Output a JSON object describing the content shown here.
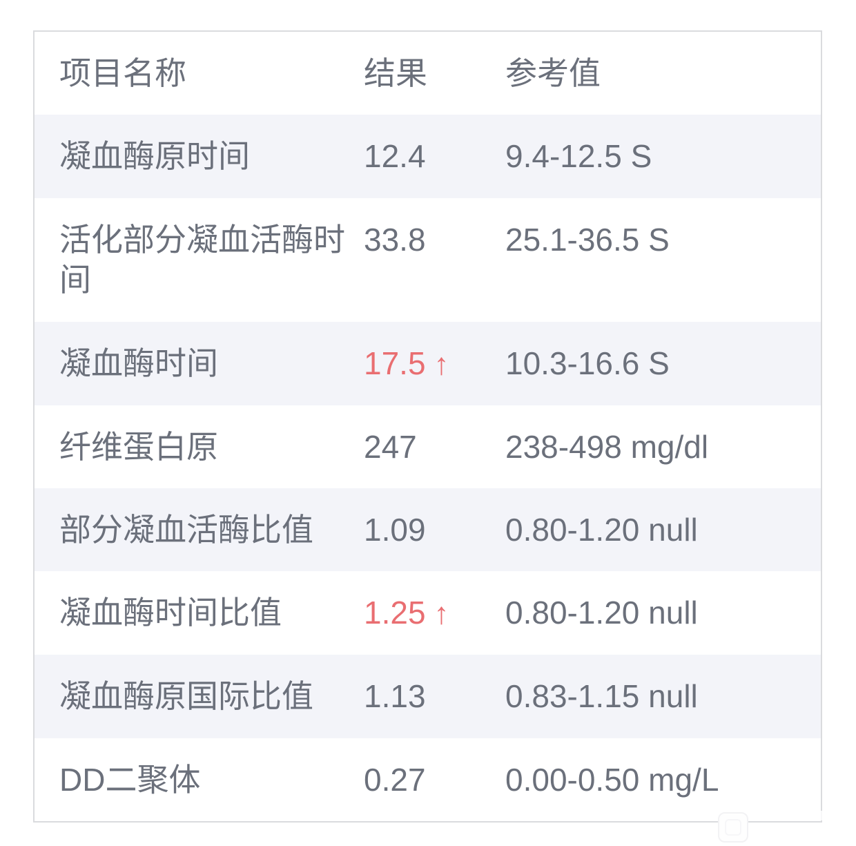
{
  "colors": {
    "text_gray": "#6b707b",
    "abnormal_red": "#e96e71",
    "row_alt_background": "#f3f4f9",
    "card_border": "#dadbde"
  },
  "table": {
    "headers": [
      "项目名称",
      "结果",
      "参考值"
    ],
    "up_arrow_glyph": "↑",
    "rows": [
      {
        "name": "凝血酶原时间",
        "result": "12.4",
        "abnormal": false,
        "arrow": "",
        "reference": "9.4-12.5 S"
      },
      {
        "name": "活化部分凝血活酶时间",
        "result": "33.8",
        "abnormal": false,
        "arrow": "",
        "reference": "25.1-36.5 S"
      },
      {
        "name": "凝血酶时间",
        "result": "17.5",
        "abnormal": true,
        "arrow": "↑",
        "reference": "10.3-16.6 S"
      },
      {
        "name": "纤维蛋白原",
        "result": "247",
        "abnormal": false,
        "arrow": "",
        "reference": "238-498 mg/dl"
      },
      {
        "name": "部分凝血活酶比值",
        "result": "1.09",
        "abnormal": false,
        "arrow": "",
        "reference": "0.80-1.20 null"
      },
      {
        "name": "凝血酶时间比值",
        "result": "1.25",
        "abnormal": true,
        "arrow": "↑",
        "reference": "0.80-1.20 null"
      },
      {
        "name": "凝血酶原国际比值",
        "result": "1.13",
        "abnormal": false,
        "arrow": "",
        "reference": "0.83-1.15 null"
      },
      {
        "name": "DD二聚体",
        "result": "0.27",
        "abnormal": false,
        "arrow": "",
        "reference": "0.00-0.50 mg/L"
      }
    ]
  }
}
